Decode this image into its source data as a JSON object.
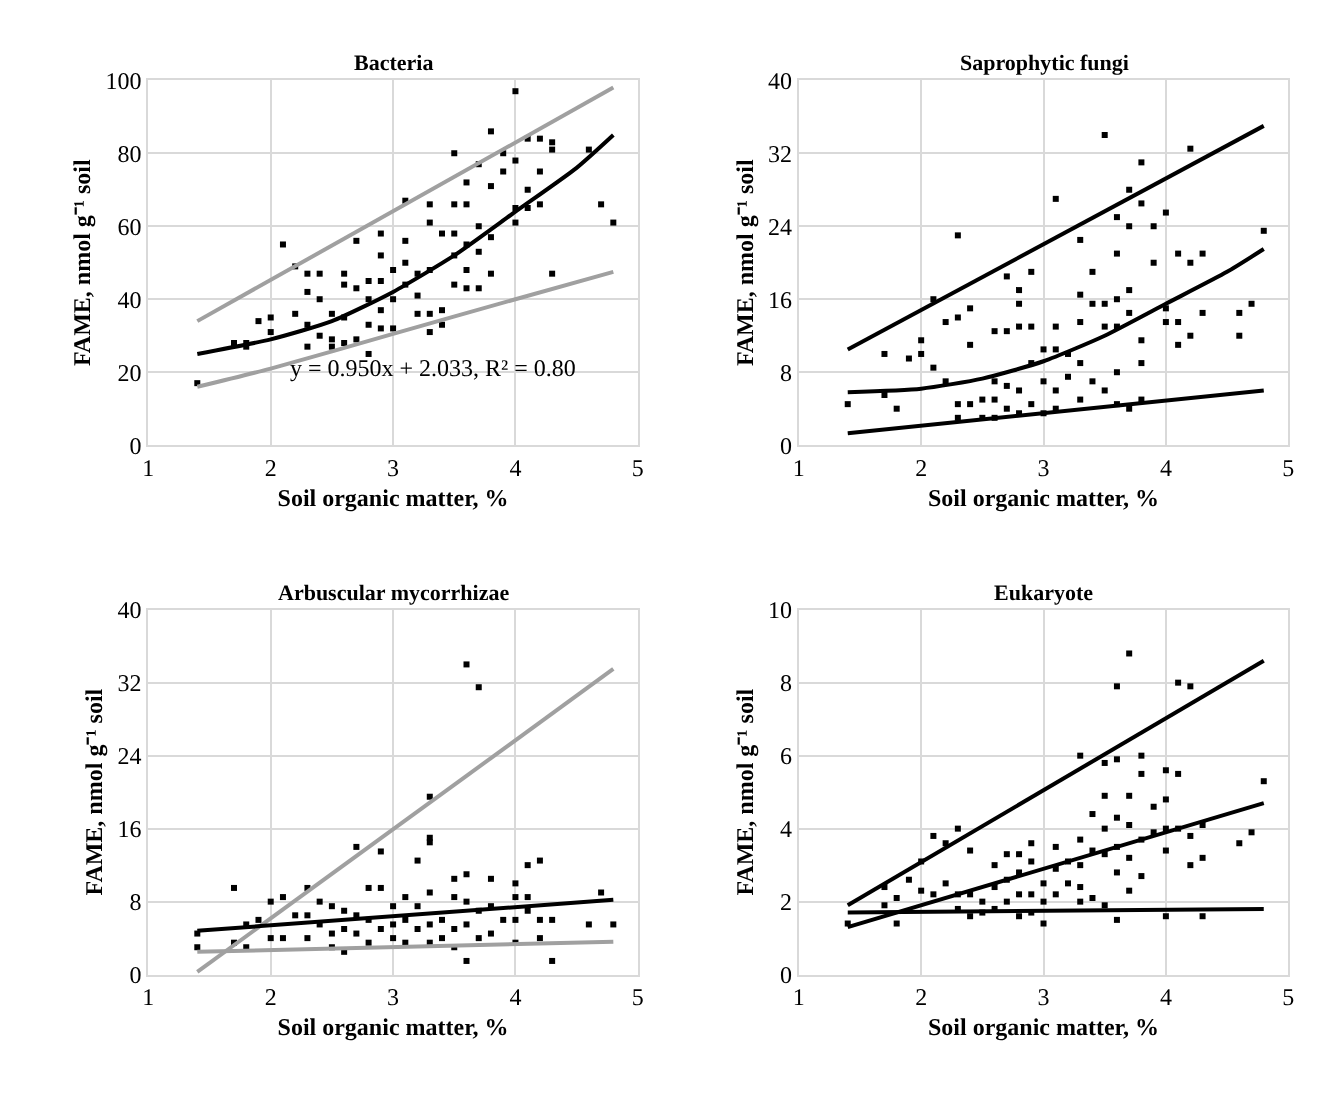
{
  "chart_data": [
    {
      "type": "scatter",
      "title": "Bacteria",
      "xlabel": "Soil organic matter, %",
      "ylabel": "FAME, nmol g⁻¹ soil",
      "xlim": [
        1,
        5
      ],
      "xticks": [
        1,
        2,
        3,
        4,
        5
      ],
      "ylim": [
        0,
        100
      ],
      "yticks": [
        0,
        20,
        40,
        60,
        80,
        100
      ],
      "grid": true,
      "annotations": [
        "y = 0.950x + 2.033, R² = 0.80"
      ],
      "series": [
        {
          "marker": "square",
          "color": "#000000",
          "x": [
            1.4,
            1.7,
            1.8,
            1.8,
            1.9,
            2.0,
            2.0,
            2.1,
            2.2,
            2.2,
            2.3,
            2.3,
            2.3,
            2.3,
            2.4,
            2.4,
            2.4,
            2.5,
            2.5,
            2.5,
            2.6,
            2.6,
            2.6,
            2.6,
            2.7,
            2.7,
            2.7,
            2.8,
            2.8,
            2.8,
            2.8,
            2.9,
            2.9,
            2.9,
            2.9,
            2.9,
            3.0,
            3.0,
            3.0,
            3.1,
            3.1,
            3.1,
            3.1,
            3.2,
            3.2,
            3.2,
            3.3,
            3.3,
            3.3,
            3.3,
            3.3,
            3.4,
            3.4,
            3.4,
            3.5,
            3.5,
            3.5,
            3.5,
            3.5,
            3.6,
            3.6,
            3.6,
            3.6,
            3.6,
            3.7,
            3.7,
            3.7,
            3.7,
            3.8,
            3.8,
            3.8,
            3.8,
            3.9,
            3.9,
            4.0,
            4.0,
            4.0,
            4.0,
            4.1,
            4.1,
            4.1,
            4.2,
            4.2,
            4.2,
            4.3,
            4.3,
            4.3,
            4.6,
            4.7,
            4.8
          ],
          "values": [
            17,
            28,
            27,
            28,
            34,
            35,
            31,
            55,
            49,
            36,
            47,
            42,
            33,
            27,
            47,
            40,
            30,
            36,
            29,
            27,
            47,
            44,
            35,
            28,
            56,
            43,
            29,
            45,
            40,
            33,
            25,
            58,
            52,
            45,
            37,
            32,
            48,
            40,
            32,
            67,
            56,
            50,
            44,
            47,
            41,
            36,
            66,
            61,
            48,
            36,
            31,
            58,
            37,
            33,
            80,
            66,
            58,
            52,
            44,
            72,
            66,
            55,
            48,
            43,
            77,
            60,
            53,
            43,
            86,
            71,
            57,
            47,
            80,
            75,
            97,
            78,
            65,
            61,
            84,
            70,
            65,
            84,
            75,
            66,
            83,
            81,
            47,
            81,
            66,
            61
          ]
        },
        {
          "type": "line",
          "color": "#a0a0a0",
          "x": [
            1.4,
            4.8
          ],
          "values": [
            34,
            98
          ]
        },
        {
          "type": "line",
          "color": "#000000",
          "x": [
            1.4,
            2.0,
            2.5,
            3.0,
            3.5,
            4.0,
            4.5,
            4.8
          ],
          "values": [
            25,
            29,
            34,
            42,
            52,
            64,
            76,
            85
          ]
        },
        {
          "type": "line",
          "color": "#a0a0a0",
          "x": [
            1.4,
            2.0,
            3.0,
            4.0,
            4.8
          ],
          "values": [
            16,
            21,
            30.5,
            40,
            47.5
          ]
        }
      ]
    },
    {
      "type": "scatter",
      "title": "Saprophytic fungi",
      "xlabel": "Soil organic matter, %",
      "ylabel": "FAME, nmol g⁻¹ soil",
      "xlim": [
        1,
        5
      ],
      "xticks": [
        1,
        2,
        3,
        4,
        5
      ],
      "ylim": [
        0,
        40
      ],
      "yticks": [
        0,
        8,
        16,
        24,
        32,
        40
      ],
      "grid": true,
      "series": [
        {
          "marker": "square",
          "color": "#000000",
          "x": [
            1.4,
            1.7,
            1.7,
            1.8,
            1.9,
            2.0,
            2.0,
            2.1,
            2.1,
            2.2,
            2.2,
            2.3,
            2.3,
            2.3,
            2.3,
            2.4,
            2.4,
            2.4,
            2.5,
            2.5,
            2.6,
            2.6,
            2.6,
            2.6,
            2.7,
            2.7,
            2.7,
            2.7,
            2.8,
            2.8,
            2.8,
            2.8,
            2.8,
            2.9,
            2.9,
            2.9,
            2.9,
            3.0,
            3.0,
            3.0,
            3.1,
            3.1,
            3.1,
            3.1,
            3.1,
            3.2,
            3.2,
            3.3,
            3.3,
            3.3,
            3.3,
            3.3,
            3.4,
            3.4,
            3.4,
            3.5,
            3.5,
            3.5,
            3.5,
            3.6,
            3.6,
            3.6,
            3.6,
            3.6,
            3.6,
            3.7,
            3.7,
            3.7,
            3.7,
            3.7,
            3.8,
            3.8,
            3.8,
            3.8,
            3.8,
            3.9,
            3.9,
            4.0,
            4.0,
            4.0,
            4.1,
            4.1,
            4.1,
            4.2,
            4.2,
            4.2,
            4.3,
            4.3,
            4.6,
            4.6,
            4.7,
            4.8
          ],
          "values": [
            4.5,
            10,
            5.5,
            4,
            9.5,
            11.5,
            10,
            16,
            8.5,
            13.5,
            7,
            23,
            14,
            4.5,
            3,
            15,
            11,
            4.5,
            5,
            3,
            12.5,
            7,
            5,
            3,
            18.5,
            12.5,
            6.5,
            4,
            17,
            15.5,
            13,
            6,
            3.5,
            19,
            13,
            9,
            4.5,
            10.5,
            7,
            3.5,
            27,
            13,
            10.5,
            6,
            4,
            10,
            7.5,
            22.5,
            16.5,
            13.5,
            9,
            5,
            19,
            15.5,
            7,
            34,
            15.5,
            13,
            6,
            25,
            21,
            16,
            13,
            8,
            4.5,
            28,
            24,
            17,
            14.5,
            4,
            31,
            26.5,
            11.5,
            9,
            5,
            24,
            20,
            25.5,
            15,
            13.5,
            21,
            13.5,
            11,
            32.5,
            20,
            12,
            21,
            14.5,
            14.5,
            12,
            15.5,
            23.5
          ]
        },
        {
          "type": "line",
          "color": "#000000",
          "x": [
            1.4,
            4.8
          ],
          "values": [
            10.5,
            35
          ]
        },
        {
          "type": "line",
          "color": "#000000",
          "x": [
            1.4,
            2.0,
            2.5,
            3.0,
            3.5,
            4.0,
            4.5,
            4.8
          ],
          "values": [
            5.8,
            6.2,
            7.3,
            9.2,
            12,
            15.5,
            19,
            21.5
          ]
        },
        {
          "type": "line",
          "color": "#000000",
          "x": [
            1.4,
            4.8
          ],
          "values": [
            1.3,
            6
          ]
        }
      ]
    },
    {
      "type": "scatter",
      "title": "Arbuscular mycorrhizae",
      "xlabel": "Soil organic matter, %",
      "ylabel": "FAME, nmol g⁻¹ soil",
      "xlim": [
        1,
        5
      ],
      "xticks": [
        1,
        2,
        3,
        4,
        5
      ],
      "ylim": [
        0,
        40
      ],
      "yticks": [
        0,
        8,
        16,
        24,
        32,
        40
      ],
      "grid": true,
      "series": [
        {
          "marker": "square",
          "color": "#000000",
          "x": [
            1.4,
            1.4,
            1.7,
            1.7,
            1.8,
            1.8,
            1.9,
            2.0,
            2.0,
            2.1,
            2.1,
            2.2,
            2.3,
            2.3,
            2.3,
            2.4,
            2.4,
            2.5,
            2.5,
            2.5,
            2.6,
            2.6,
            2.6,
            2.7,
            2.7,
            2.7,
            2.8,
            2.8,
            2.8,
            2.9,
            2.9,
            2.9,
            3.0,
            3.0,
            3.0,
            3.1,
            3.1,
            3.1,
            3.2,
            3.2,
            3.2,
            3.3,
            3.3,
            3.3,
            3.3,
            3.3,
            3.3,
            3.4,
            3.4,
            3.5,
            3.5,
            3.5,
            3.5,
            3.6,
            3.6,
            3.6,
            3.6,
            3.6,
            3.7,
            3.7,
            3.7,
            3.8,
            3.8,
            3.8,
            3.9,
            4.0,
            4.0,
            4.0,
            4.0,
            4.1,
            4.1,
            4.1,
            4.2,
            4.2,
            4.2,
            4.3,
            4.3,
            4.6,
            4.7,
            4.8
          ],
          "values": [
            4.5,
            3,
            9.5,
            3.5,
            5.5,
            3,
            6,
            8,
            4,
            8.5,
            4,
            6.5,
            9.5,
            6.5,
            4,
            8,
            5.5,
            7.5,
            4.5,
            3,
            7,
            5,
            2.5,
            14,
            6.5,
            4.5,
            9.5,
            6,
            3.5,
            13.5,
            9.5,
            5,
            7.5,
            5.5,
            4,
            8.5,
            6,
            3.5,
            12.5,
            7.5,
            5,
            19.5,
            15,
            14.5,
            9,
            5.5,
            3.5,
            6,
            4,
            10.5,
            8.5,
            5,
            3,
            34,
            11,
            8,
            5.5,
            1.5,
            31.5,
            7,
            4,
            10.5,
            7.5,
            4.5,
            6,
            10,
            8.5,
            6,
            3.5,
            12,
            8.5,
            7,
            12.5,
            6,
            4,
            6,
            1.5,
            5.5,
            9,
            5.5
          ]
        },
        {
          "type": "line",
          "color": "#a0a0a0",
          "x": [
            1.4,
            4.8
          ],
          "values": [
            0.3,
            33.5
          ]
        },
        {
          "type": "line",
          "color": "#000000",
          "x": [
            1.4,
            4.8
          ],
          "values": [
            4.8,
            8.2
          ]
        },
        {
          "type": "line",
          "color": "#a0a0a0",
          "x": [
            1.4,
            4.8
          ],
          "values": [
            2.5,
            3.6
          ]
        }
      ]
    },
    {
      "type": "scatter",
      "title": "Eukaryote",
      "xlabel": "Soil organic matter, %",
      "ylabel": "FAME, nmol g⁻¹ soil",
      "xlim": [
        1,
        5
      ],
      "xticks": [
        1,
        2,
        3,
        4,
        5
      ],
      "ylim": [
        0,
        10
      ],
      "yticks": [
        0,
        2,
        4,
        6,
        8,
        10
      ],
      "grid": true,
      "series": [
        {
          "marker": "square",
          "color": "#000000",
          "x": [
            1.4,
            1.7,
            1.7,
            1.8,
            1.8,
            1.9,
            2.0,
            2.0,
            2.1,
            2.1,
            2.2,
            2.2,
            2.3,
            2.3,
            2.3,
            2.4,
            2.4,
            2.4,
            2.5,
            2.5,
            2.6,
            2.6,
            2.6,
            2.7,
            2.7,
            2.7,
            2.8,
            2.8,
            2.8,
            2.8,
            2.9,
            2.9,
            2.9,
            2.9,
            3.0,
            3.0,
            3.0,
            3.1,
            3.1,
            3.1,
            3.2,
            3.2,
            3.3,
            3.3,
            3.3,
            3.3,
            3.3,
            3.4,
            3.4,
            3.4,
            3.5,
            3.5,
            3.5,
            3.5,
            3.5,
            3.6,
            3.6,
            3.6,
            3.6,
            3.6,
            3.6,
            3.7,
            3.7,
            3.7,
            3.7,
            3.7,
            3.8,
            3.8,
            3.8,
            3.8,
            3.9,
            3.9,
            4.0,
            4.0,
            4.0,
            4.0,
            4.0,
            4.1,
            4.1,
            4.1,
            4.2,
            4.2,
            4.2,
            4.3,
            4.3,
            4.3,
            4.6,
            4.7,
            4.8
          ],
          "values": [
            1.4,
            2.4,
            1.9,
            2.1,
            1.4,
            2.6,
            3.1,
            2.3,
            3.8,
            2.2,
            3.6,
            2.5,
            4.0,
            2.2,
            1.8,
            3.4,
            2.2,
            1.6,
            2.0,
            1.7,
            3.0,
            2.4,
            1.8,
            3.3,
            2.6,
            2.0,
            3.3,
            2.8,
            2.2,
            1.6,
            3.6,
            3.1,
            2.2,
            1.7,
            2.5,
            2.0,
            1.4,
            3.5,
            2.9,
            2.2,
            3.1,
            2.5,
            6.0,
            3.7,
            3.0,
            2.4,
            2.0,
            4.4,
            3.4,
            2.1,
            5.8,
            4.9,
            4.0,
            3.3,
            1.9,
            7.9,
            5.9,
            4.3,
            3.5,
            2.8,
            1.5,
            8.8,
            4.9,
            4.1,
            3.2,
            2.3,
            6.0,
            5.5,
            3.7,
            2.7,
            4.6,
            3.9,
            5.6,
            4.8,
            4.0,
            3.4,
            1.6,
            8.0,
            5.5,
            4.0,
            7.9,
            3.8,
            3.0,
            4.1,
            3.2,
            1.6,
            3.6,
            3.9,
            5.3
          ]
        },
        {
          "type": "line",
          "color": "#000000",
          "x": [
            1.4,
            4.8
          ],
          "values": [
            1.9,
            8.6
          ]
        },
        {
          "type": "line",
          "color": "#000000",
          "x": [
            1.4,
            4.8
          ],
          "values": [
            1.3,
            4.7
          ]
        },
        {
          "type": "line",
          "color": "#000000",
          "x": [
            1.4,
            4.8
          ],
          "values": [
            1.7,
            1.8
          ]
        }
      ]
    }
  ]
}
